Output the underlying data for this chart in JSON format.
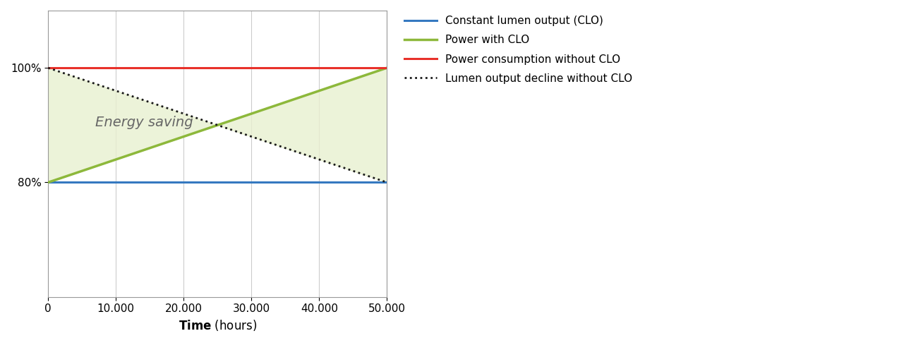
{
  "x_min": 0,
  "x_max": 50000,
  "y_min": 60,
  "y_max": 110,
  "yticks": [
    80,
    100
  ],
  "ytick_labels": [
    "80%",
    "100%"
  ],
  "xticks": [
    0,
    10000,
    20000,
    30000,
    40000,
    50000
  ],
  "xtick_labels": [
    "0",
    "10.000",
    "20.000",
    "30.000",
    "40.000",
    "50.000"
  ],
  "xlabel": "Time",
  "xlabel_suffix": " (hours)",
  "clo_line": {
    "x": [
      0,
      50000
    ],
    "y": [
      80,
      80
    ],
    "color": "#3579c0",
    "lw": 2.2
  },
  "power_clo_line": {
    "x": [
      0,
      50000
    ],
    "y": [
      80,
      100
    ],
    "color": "#8db83b",
    "lw": 2.5
  },
  "power_no_clo_line": {
    "x": [
      0,
      50000
    ],
    "y": [
      100,
      100
    ],
    "color": "#e8312a",
    "lw": 2.2
  },
  "lumen_decline_line": {
    "x": [
      0,
      50000
    ],
    "y": [
      100,
      80
    ],
    "color": "#1a1a1a",
    "lw": 2.0
  },
  "fill_color": "#e8f0d0",
  "fill_alpha": 0.8,
  "energy_saving_text": "Energy saving",
  "energy_saving_x": 7000,
  "energy_saving_y": 90.5,
  "energy_saving_fontsize": 14,
  "legend_labels": [
    "Constant lumen output (CLO)",
    "Power with CLO",
    "Power consumption without CLO",
    "Lumen output decline without CLO"
  ],
  "legend_colors": [
    "#3579c0",
    "#8db83b",
    "#e8312a",
    "#1a1a1a"
  ],
  "background_color": "#ffffff",
  "grid_color": "#cccccc",
  "tick_fontsize": 11,
  "xlabel_fontsize": 12
}
